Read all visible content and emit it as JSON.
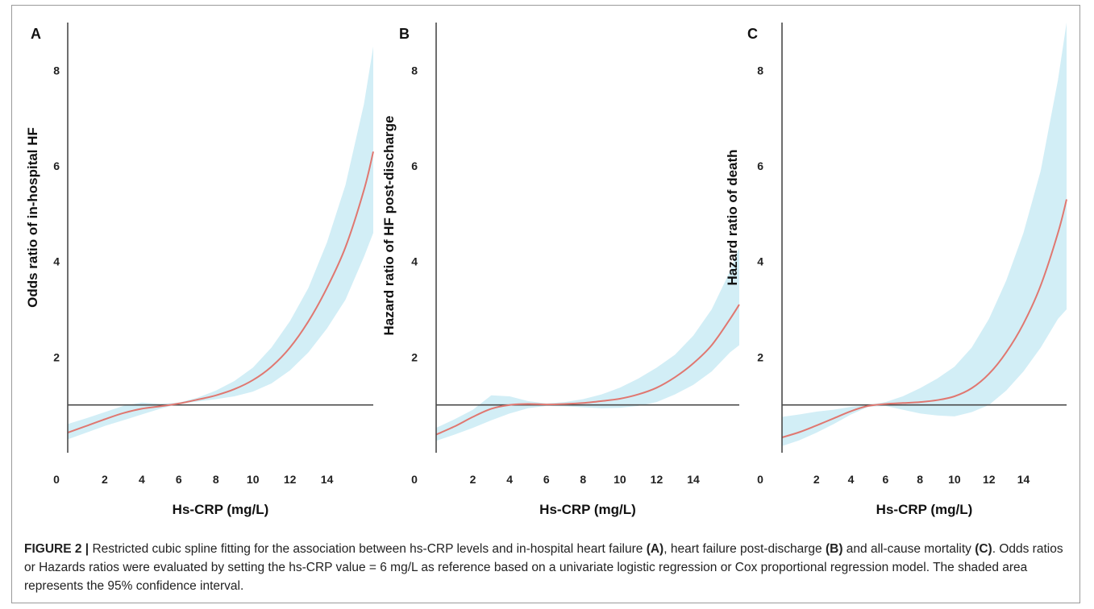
{
  "colors": {
    "curve": "#e07770",
    "band": "#d2eef6",
    "reference_line": "#4a4a4a",
    "axis": "#4a4a4a",
    "text": "#222222"
  },
  "chart_data": [
    {
      "type": "line",
      "panel_label": "A",
      "xlabel": "Hs-CRP (mg/L)",
      "ylabel": "Odds ratio of in-hospital HF",
      "xlim": [
        0,
        16.5
      ],
      "ylim": [
        0,
        9
      ],
      "x_ticks": [
        0,
        2,
        4,
        6,
        8,
        10,
        12,
        14
      ],
      "y_ticks": [
        2,
        4,
        6,
        8
      ],
      "reference_y": 1,
      "grid": false,
      "series": [
        {
          "x": [
            0,
            1,
            2,
            3,
            4,
            5,
            6,
            7,
            8,
            9,
            10,
            11,
            12,
            13,
            14,
            15,
            16,
            16.5
          ],
          "y": [
            0.42,
            0.56,
            0.7,
            0.83,
            0.92,
            0.97,
            1.03,
            1.11,
            1.2,
            1.33,
            1.52,
            1.8,
            2.2,
            2.75,
            3.45,
            4.3,
            5.5,
            6.3
          ]
        }
      ],
      "band_lower": [
        0.28,
        0.42,
        0.56,
        0.68,
        0.8,
        0.92,
        1.02,
        1.07,
        1.12,
        1.18,
        1.28,
        1.45,
        1.72,
        2.1,
        2.6,
        3.2,
        4.1,
        4.6
      ],
      "band_upper": [
        0.6,
        0.72,
        0.85,
        0.98,
        1.05,
        1.02,
        1.05,
        1.15,
        1.3,
        1.5,
        1.78,
        2.2,
        2.75,
        3.45,
        4.4,
        5.6,
        7.3,
        8.5
      ]
    },
    {
      "type": "line",
      "panel_label": "B",
      "xlabel": "Hs-CRP (mg/L)",
      "ylabel": "Hazard ratio of HF post-discharge",
      "xlim": [
        0,
        16.5
      ],
      "ylim": [
        0,
        9
      ],
      "x_ticks": [
        0,
        2,
        4,
        6,
        8,
        10,
        12,
        14
      ],
      "y_ticks": [
        2,
        4,
        6,
        8
      ],
      "reference_y": 1,
      "grid": false,
      "series": [
        {
          "x": [
            0,
            1,
            2,
            3,
            4,
            5,
            6,
            7,
            8,
            9,
            10,
            11,
            12,
            13,
            14,
            15,
            16,
            16.5
          ],
          "y": [
            0.38,
            0.55,
            0.75,
            0.92,
            1.0,
            1.02,
            1.01,
            1.02,
            1.04,
            1.08,
            1.13,
            1.22,
            1.36,
            1.58,
            1.87,
            2.25,
            2.8,
            3.1
          ]
        }
      ],
      "band_lower": [
        0.25,
        0.38,
        0.52,
        0.68,
        0.82,
        0.93,
        0.98,
        0.97,
        0.95,
        0.93,
        0.94,
        0.98,
        1.06,
        1.22,
        1.42,
        1.7,
        2.1,
        2.25
      ],
      "band_upper": [
        0.52,
        0.7,
        0.9,
        1.2,
        1.18,
        1.08,
        1.03,
        1.06,
        1.12,
        1.22,
        1.36,
        1.55,
        1.78,
        2.05,
        2.45,
        3.0,
        3.8,
        4.3
      ]
    },
    {
      "type": "line",
      "panel_label": "C",
      "xlabel": "Hs-CRP (mg/L)",
      "ylabel": "Hazard ratio of death",
      "xlim": [
        0,
        16.5
      ],
      "ylim": [
        0,
        9
      ],
      "x_ticks": [
        0,
        2,
        4,
        6,
        8,
        10,
        12,
        14
      ],
      "y_ticks": [
        2,
        4,
        6,
        8
      ],
      "reference_y": 1,
      "grid": false,
      "series": [
        {
          "x": [
            0,
            1,
            2,
            3,
            4,
            5,
            6,
            7,
            8,
            9,
            10,
            11,
            12,
            13,
            14,
            15,
            16,
            16.5
          ],
          "y": [
            0.32,
            0.43,
            0.57,
            0.72,
            0.87,
            0.98,
            1.02,
            1.04,
            1.06,
            1.1,
            1.18,
            1.35,
            1.65,
            2.1,
            2.7,
            3.5,
            4.6,
            5.3
          ]
        }
      ],
      "band_lower": [
        0.14,
        0.26,
        0.42,
        0.6,
        0.8,
        0.96,
        0.98,
        0.9,
        0.82,
        0.78,
        0.76,
        0.85,
        1.0,
        1.3,
        1.7,
        2.2,
        2.8,
        3.0
      ],
      "band_upper": [
        0.75,
        0.8,
        0.86,
        0.9,
        0.96,
        1.0,
        1.06,
        1.18,
        1.35,
        1.55,
        1.8,
        2.2,
        2.8,
        3.6,
        4.6,
        5.9,
        7.8,
        9.0
      ]
    }
  ],
  "caption": {
    "head": "FIGURE 2 |",
    "part1": " Restricted cubic spline fitting for the association between hs-CRP levels and in-hospital heart failure ",
    "ref_a": "(A)",
    "part2": ", heart failure post-discharge ",
    "ref_b": "(B)",
    "part3": " and all-cause mortality ",
    "ref_c": "(C)",
    "part4": ". Odds ratios or Hazards ratios were evaluated by setting the hs-CRP value = 6 mg/L as reference based on a univariate logistic regression or Cox proportional regression model. The shaded area represents the 95% confidence interval."
  }
}
